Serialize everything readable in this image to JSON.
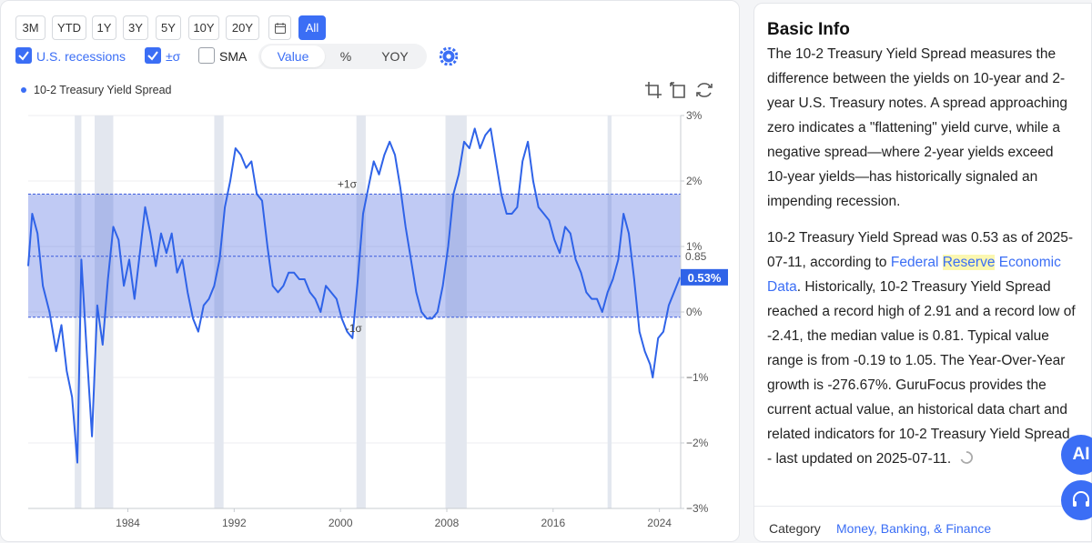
{
  "toolbar": {
    "ranges": [
      "3M",
      "YTD",
      "1Y",
      "3Y",
      "5Y",
      "10Y",
      "20Y",
      "All"
    ],
    "active_range": "All",
    "options": [
      {
        "label": "U.S. recessions",
        "checked": true
      },
      {
        "label": "±σ",
        "checked": true
      },
      {
        "label": "SMA",
        "checked": false
      }
    ],
    "modes": [
      "Value",
      "%",
      "YOY"
    ],
    "active_mode": "Value"
  },
  "chart_data": {
    "type": "line",
    "series": [
      {
        "name": "10-2 Treasury Yield Spread"
      }
    ],
    "x_ticks": [
      "1984",
      "1992",
      "2000",
      "2008",
      "2016",
      "2024"
    ],
    "y_ticks": [
      "3%",
      "2%",
      "1%",
      "0%",
      "−1%",
      "−2%",
      "−3%"
    ],
    "ylim": [
      -3,
      3
    ],
    "xlim": [
      1976.5,
      2025.6
    ],
    "band_labels": {
      "upper": "+1σ",
      "lower": "-1σ"
    },
    "band": {
      "upper": 1.8,
      "lower": -0.08
    },
    "mean_line": {
      "label": "0.85",
      "value": 0.85
    },
    "current_value": {
      "label": "0.53%",
      "value": 0.53
    },
    "recessions": [
      [
        1980.0,
        1980.5
      ],
      [
        1981.5,
        1982.9
      ],
      [
        1990.5,
        1991.2
      ],
      [
        2001.2,
        2001.9
      ],
      [
        2007.9,
        2009.5
      ],
      [
        2020.1,
        2020.4
      ]
    ],
    "points": [
      [
        1976.5,
        0.7
      ],
      [
        1976.8,
        1.5
      ],
      [
        1977.2,
        1.2
      ],
      [
        1977.6,
        0.4
      ],
      [
        1978.1,
        0.0
      ],
      [
        1978.6,
        -0.6
      ],
      [
        1979.0,
        -0.2
      ],
      [
        1979.4,
        -0.9
      ],
      [
        1979.8,
        -1.3
      ],
      [
        1980.2,
        -2.3
      ],
      [
        1980.5,
        0.8
      ],
      [
        1980.9,
        -0.6
      ],
      [
        1981.3,
        -1.9
      ],
      [
        1981.7,
        0.1
      ],
      [
        1982.1,
        -0.5
      ],
      [
        1982.5,
        0.5
      ],
      [
        1982.9,
        1.3
      ],
      [
        1983.3,
        1.1
      ],
      [
        1983.7,
        0.4
      ],
      [
        1984.1,
        0.8
      ],
      [
        1984.5,
        0.2
      ],
      [
        1984.9,
        0.9
      ],
      [
        1985.3,
        1.6
      ],
      [
        1985.7,
        1.2
      ],
      [
        1986.1,
        0.7
      ],
      [
        1986.5,
        1.2
      ],
      [
        1986.9,
        0.9
      ],
      [
        1987.3,
        1.2
      ],
      [
        1987.7,
        0.6
      ],
      [
        1988.1,
        0.8
      ],
      [
        1988.5,
        0.3
      ],
      [
        1988.9,
        -0.1
      ],
      [
        1989.3,
        -0.3
      ],
      [
        1989.7,
        0.1
      ],
      [
        1990.1,
        0.2
      ],
      [
        1990.5,
        0.4
      ],
      [
        1990.9,
        0.8
      ],
      [
        1991.3,
        1.6
      ],
      [
        1991.7,
        2.0
      ],
      [
        1992.1,
        2.5
      ],
      [
        1992.5,
        2.4
      ],
      [
        1992.9,
        2.2
      ],
      [
        1993.3,
        2.3
      ],
      [
        1993.7,
        1.8
      ],
      [
        1994.1,
        1.7
      ],
      [
        1994.5,
        1.0
      ],
      [
        1994.9,
        0.4
      ],
      [
        1995.3,
        0.3
      ],
      [
        1995.7,
        0.4
      ],
      [
        1996.1,
        0.6
      ],
      [
        1996.5,
        0.6
      ],
      [
        1996.9,
        0.5
      ],
      [
        1997.3,
        0.5
      ],
      [
        1997.7,
        0.3
      ],
      [
        1998.1,
        0.2
      ],
      [
        1998.5,
        0.0
      ],
      [
        1998.9,
        0.4
      ],
      [
        1999.3,
        0.3
      ],
      [
        1999.7,
        0.2
      ],
      [
        2000.1,
        -0.1
      ],
      [
        2000.5,
        -0.3
      ],
      [
        2000.9,
        -0.4
      ],
      [
        2001.3,
        0.5
      ],
      [
        2001.7,
        1.5
      ],
      [
        2002.1,
        1.9
      ],
      [
        2002.5,
        2.3
      ],
      [
        2002.9,
        2.1
      ],
      [
        2003.3,
        2.4
      ],
      [
        2003.7,
        2.6
      ],
      [
        2004.1,
        2.4
      ],
      [
        2004.5,
        1.9
      ],
      [
        2004.9,
        1.3
      ],
      [
        2005.3,
        0.8
      ],
      [
        2005.7,
        0.3
      ],
      [
        2006.1,
        0.0
      ],
      [
        2006.5,
        -0.1
      ],
      [
        2006.9,
        -0.1
      ],
      [
        2007.3,
        0.0
      ],
      [
        2007.7,
        0.4
      ],
      [
        2008.1,
        1.0
      ],
      [
        2008.5,
        1.8
      ],
      [
        2008.9,
        2.1
      ],
      [
        2009.3,
        2.6
      ],
      [
        2009.7,
        2.5
      ],
      [
        2010.1,
        2.8
      ],
      [
        2010.5,
        2.5
      ],
      [
        2010.9,
        2.7
      ],
      [
        2011.3,
        2.8
      ],
      [
        2011.7,
        2.3
      ],
      [
        2012.1,
        1.8
      ],
      [
        2012.5,
        1.5
      ],
      [
        2012.9,
        1.5
      ],
      [
        2013.3,
        1.6
      ],
      [
        2013.7,
        2.3
      ],
      [
        2014.1,
        2.6
      ],
      [
        2014.5,
        2.0
      ],
      [
        2014.9,
        1.6
      ],
      [
        2015.3,
        1.5
      ],
      [
        2015.7,
        1.4
      ],
      [
        2016.1,
        1.1
      ],
      [
        2016.5,
        0.9
      ],
      [
        2016.9,
        1.3
      ],
      [
        2017.3,
        1.2
      ],
      [
        2017.7,
        0.8
      ],
      [
        2018.1,
        0.6
      ],
      [
        2018.5,
        0.3
      ],
      [
        2018.9,
        0.2
      ],
      [
        2019.3,
        0.2
      ],
      [
        2019.7,
        0.0
      ],
      [
        2020.1,
        0.3
      ],
      [
        2020.5,
        0.5
      ],
      [
        2020.9,
        0.8
      ],
      [
        2021.3,
        1.5
      ],
      [
        2021.7,
        1.2
      ],
      [
        2022.1,
        0.5
      ],
      [
        2022.5,
        -0.3
      ],
      [
        2022.9,
        -0.6
      ],
      [
        2023.3,
        -0.8
      ],
      [
        2023.5,
        -1.0
      ],
      [
        2023.9,
        -0.4
      ],
      [
        2024.3,
        -0.3
      ],
      [
        2024.7,
        0.1
      ],
      [
        2025.1,
        0.3
      ],
      [
        2025.55,
        0.53
      ]
    ]
  },
  "info": {
    "title": "Basic Info",
    "p1": "The 10-2 Treasury Yield Spread measures the difference between the yields on 10-year and 2-year U.S. Treasury notes. A spread approaching zero indicates a \"flattening\" yield curve, while a negative spread—where 2-year yields exceed 10-year yields—has historically signaled an impending recession.",
    "p2_before": "10-2 Treasury Yield Spread was 0.53 as of 2025-07-11, according to ",
    "link1": "Federal ",
    "link_hl": "Reserve",
    "link2": " Economic Data",
    "p2_after": ". Historically, 10-2 Treasury Yield Spread reached a record high of 2.91 and a record low of -2.41, the median value is 0.81. Typical value range is from -0.19 to 1.05. The Year-Over-Year growth is -276.67%. GuruFocus provides the current actual value, an historical data chart and related indicators for 10-2 Treasury Yield Spread - last updated on 2025-07-11.",
    "category_label": "Category",
    "category_value": "Money, Banking, & Finance"
  },
  "fab": {
    "ai_label": "AI"
  }
}
